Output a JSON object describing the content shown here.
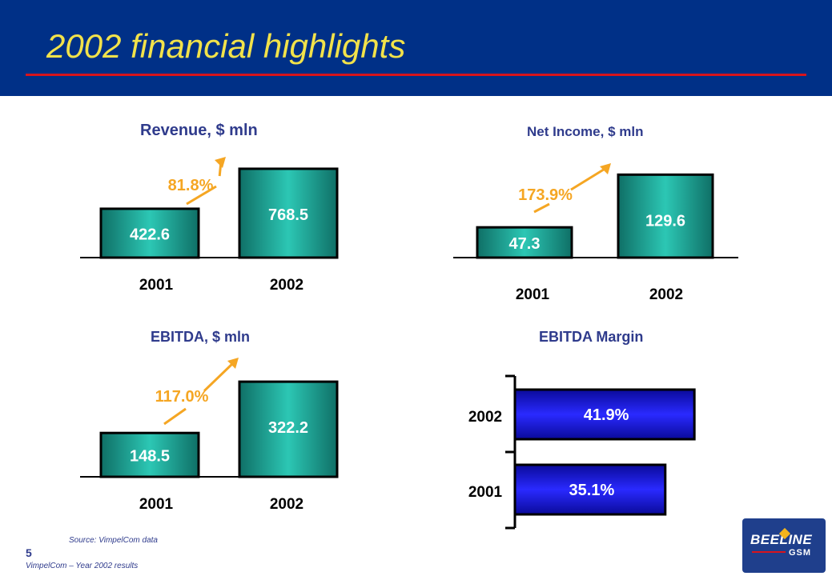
{
  "slide": {
    "title": "2002 financial highlights",
    "source": "Source: VimpelCom data",
    "page_number": "5",
    "footer": "VimpelCom – Year 2002 results",
    "logo": {
      "top": "BEELINE",
      "bottom": "GSM"
    }
  },
  "colors": {
    "header_bg": "#003087",
    "title": "#f2e24a",
    "rule": "#d8141c",
    "bar_teal": "#1fb5a3",
    "bar_blue": "#1a1ae0",
    "growth": "#f5a623",
    "chart_title": "#2f3b8c"
  },
  "chart_data": [
    {
      "id": "revenue",
      "type": "bar",
      "title": "Revenue, $ mln",
      "categories": [
        "2001",
        "2002"
      ],
      "values": [
        422.6,
        768.5
      ],
      "value_labels": [
        "422.6",
        "768.5"
      ],
      "growth_label": "81.8%"
    },
    {
      "id": "net_income",
      "type": "bar",
      "title": "Net Income, $ mln",
      "categories": [
        "2001",
        "2002"
      ],
      "values": [
        47.3,
        129.6
      ],
      "value_labels": [
        "47.3",
        "129.6"
      ],
      "growth_label": "173.9%"
    },
    {
      "id": "ebitda",
      "type": "bar",
      "title": "EBITDA, $ mln",
      "categories": [
        "2001",
        "2002"
      ],
      "values": [
        148.5,
        322.2
      ],
      "value_labels": [
        "148.5",
        "322.2"
      ],
      "growth_label": "117.0%"
    },
    {
      "id": "ebitda_margin",
      "type": "bar",
      "orientation": "horizontal",
      "title": "EBITDA Margin",
      "categories": [
        "2002",
        "2001"
      ],
      "values": [
        41.9,
        35.1
      ],
      "value_labels": [
        "41.9%",
        "35.1%"
      ]
    }
  ]
}
